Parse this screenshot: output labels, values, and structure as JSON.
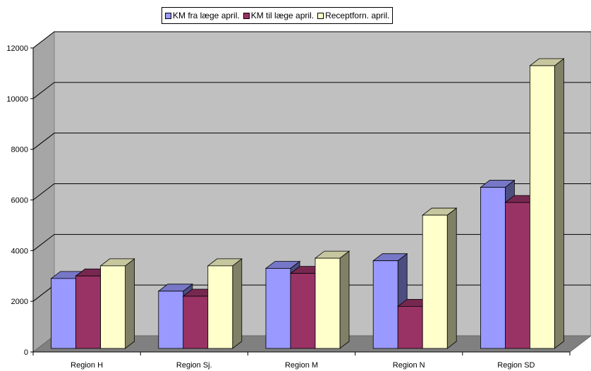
{
  "chart_data": {
    "type": "bar",
    "categories": [
      "Region H",
      "Region Sj.",
      "Region M",
      "Region N",
      "Region SD"
    ],
    "series": [
      {
        "name": "KM fra læge april.",
        "values": [
          2900,
          2400,
          3300,
          3600,
          6500
        ],
        "color": "#9999FF"
      },
      {
        "name": "KM til læge april.",
        "values": [
          3000,
          2200,
          3100,
          1800,
          5900
        ],
        "color": "#993366"
      },
      {
        "name": "Receptforn. april.",
        "values": [
          3400,
          3400,
          3700,
          5400,
          11300
        ],
        "color": "#FFFFCC"
      }
    ],
    "ylim": [
      0,
      12000
    ],
    "yticks": [
      0,
      2000,
      4000,
      6000,
      8000,
      10000,
      12000
    ],
    "grid": true,
    "legend_position": "top",
    "wall_color": "#C0C0C0",
    "floor_color": "#808080"
  }
}
